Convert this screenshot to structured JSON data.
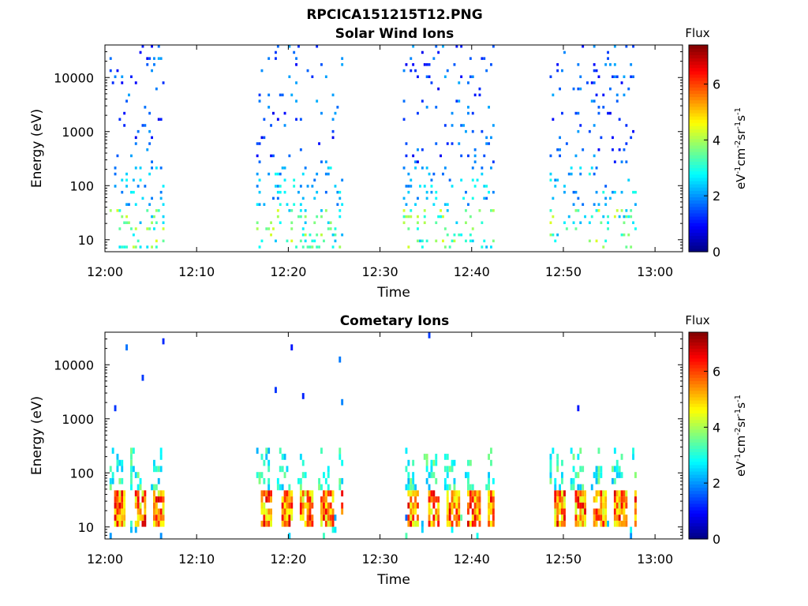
{
  "figure": {
    "title": "RPCICA151215T12.PNG"
  },
  "colormap": [
    "#00007f",
    "#0000ff",
    "#007fff",
    "#00ffff",
    "#7fff7f",
    "#ffff00",
    "#ff7f00",
    "#ff0000",
    "#7f0000"
  ],
  "chart_data": [
    {
      "type": "heatmap",
      "title": "Solar Wind Ions",
      "xlabel": "Time",
      "ylabel": "Energy (eV)",
      "y_scale": "log",
      "xlim": [
        "12:00",
        "13:03"
      ],
      "ylim": [
        6,
        40000
      ],
      "x_ticks": [
        "12:00",
        "12:10",
        "12:20",
        "12:30",
        "12:40",
        "12:50",
        "13:00"
      ],
      "y_ticks": [
        {
          "v": 10,
          "label": "10"
        },
        {
          "v": 100,
          "label": "100"
        },
        {
          "v": 1000,
          "label": "1000"
        },
        {
          "v": 10000,
          "label": "10000"
        }
      ],
      "colorbar": {
        "label": "Flux",
        "units": "eV-1cm-2sr-1s-1",
        "range": [
          0,
          7.4
        ],
        "ticks": [
          0,
          2,
          4,
          6
        ]
      },
      "bursts": [
        [
          "12:00.5",
          "12:06.5"
        ],
        [
          "12:16.5",
          "12:26"
        ],
        [
          "12:32.5",
          "12:42.5"
        ],
        [
          "12:48.5",
          "12:58"
        ]
      ]
    },
    {
      "type": "heatmap",
      "title": "Cometary Ions",
      "xlabel": "Time",
      "ylabel": "Energy (eV)",
      "y_scale": "log",
      "xlim": [
        "12:00",
        "13:03"
      ],
      "ylim": [
        6,
        40000
      ],
      "x_ticks": [
        "12:00",
        "12:10",
        "12:20",
        "12:30",
        "12:40",
        "12:50",
        "13:00"
      ],
      "y_ticks": [
        {
          "v": 10,
          "label": "10"
        },
        {
          "v": 100,
          "label": "100"
        },
        {
          "v": 1000,
          "label": "1000"
        },
        {
          "v": 10000,
          "label": "10000"
        }
      ],
      "colorbar": {
        "label": "Flux",
        "units": "eV-1cm-2sr-1s-1",
        "range": [
          0,
          7.4
        ],
        "ticks": [
          0,
          2,
          4,
          6
        ]
      },
      "bursts": [
        [
          "12:00.5",
          "12:06.5"
        ],
        [
          "12:16.5",
          "12:26"
        ],
        [
          "12:32.5",
          "12:42.5"
        ],
        [
          "12:48.5",
          "12:58"
        ]
      ],
      "peak_energy_eV": 30
    }
  ]
}
